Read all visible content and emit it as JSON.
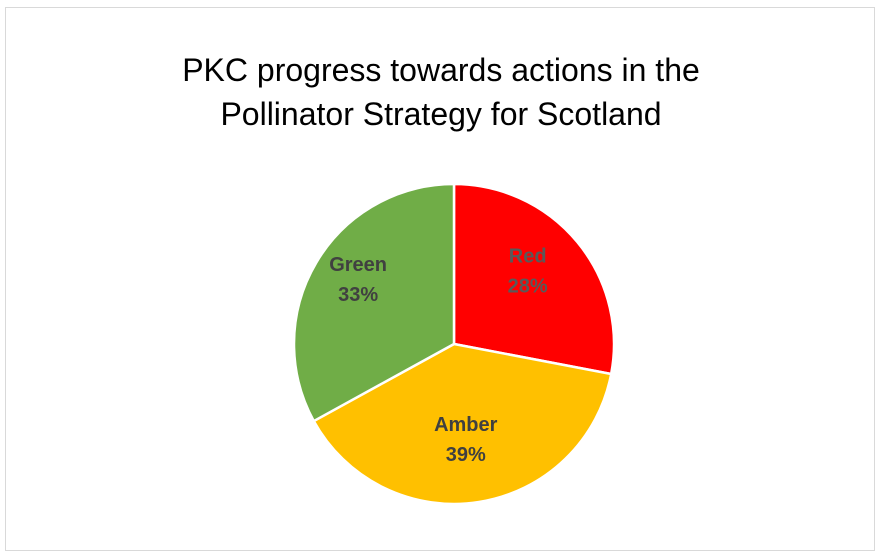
{
  "chart_data": {
    "type": "pie",
    "title": "PKC progress towards actions in the Pollinator Strategy for Scotland",
    "title_lines": [
      "PKC progress towards actions in the",
      "Pollinator Strategy for Scotland"
    ],
    "slices": [
      {
        "label": "Red",
        "value": 28,
        "value_text": "28%",
        "color": "#ff0000",
        "label_color": "#595959"
      },
      {
        "label": "Amber",
        "value": 39,
        "value_text": "39%",
        "color": "#ffc000",
        "label_color": "#404040"
      },
      {
        "label": "Green",
        "value": 33,
        "value_text": "33%",
        "color": "#70ad47",
        "label_color": "#404040"
      }
    ],
    "start_angle": "top, clockwise",
    "legend": "none"
  }
}
